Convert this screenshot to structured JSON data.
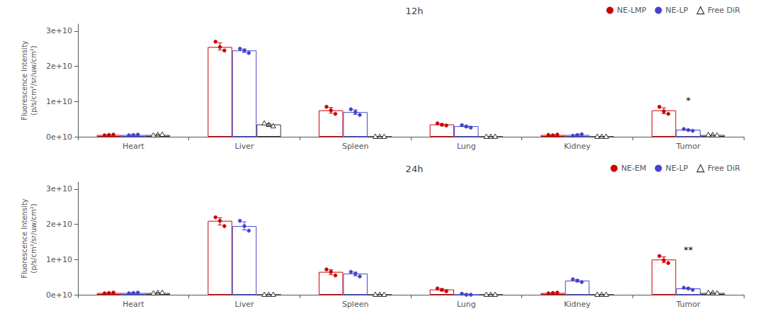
{
  "chart_data": [
    {
      "type": "bar",
      "title": "12h",
      "categories": [
        "Heart",
        "Liver",
        "Spleen",
        "Lung",
        "Kidney",
        "Tumor"
      ],
      "ylabel": "Fluorescence Intensity\n(p/s/cm²/sr/uw/cm²)",
      "ylim": [
        0,
        32000000000.0
      ],
      "yticks": [
        {
          "value": 0,
          "label": "0e+10"
        },
        {
          "value": 10000000000.0,
          "label": "1e+10"
        },
        {
          "value": 20000000000.0,
          "label": "2e+10"
        },
        {
          "value": 30000000000.0,
          "label": "3e+10"
        }
      ],
      "grid": false,
      "legend": "upper right",
      "series": [
        {
          "name": "NE-LMP",
          "color": "#cc0000",
          "marker": "circle",
          "values": [
            500000000.0,
            25500000000.0,
            7500000000.0,
            3500000000.0,
            500000000.0,
            7500000000.0
          ],
          "points": [
            [
              400000000.0,
              500000000.0,
              600000000.0
            ],
            [
              27000000000.0,
              25500000000.0,
              24500000000.0
            ],
            [
              8500000000.0,
              7500000000.0,
              6500000000.0
            ],
            [
              3800000000.0,
              3400000000.0,
              3200000000.0
            ],
            [
              500000000.0,
              400000000.0,
              600000000.0
            ],
            [
              8500000000.0,
              7200000000.0,
              6500000000.0
            ]
          ],
          "error_centers": [
            500000000.0,
            25666667000.0,
            7500000000.0,
            3466667000.0,
            500000000.0,
            7400000000.0
          ],
          "errors": [
            81650000.0,
            1027402000.0,
            816497000.0,
            249444000.0,
            81650000.0,
            828654000.0
          ]
        },
        {
          "name": "NE-LP",
          "color": "#4444cc",
          "marker": "circle",
          "values": [
            500000000.0,
            24500000000.0,
            7000000000.0,
            3000000000.0,
            500000000.0,
            2000000000.0
          ],
          "points": [
            [
              400000000.0,
              500000000.0,
              600000000.0
            ],
            [
              25000000000.0,
              24500000000.0,
              23800000000.0
            ],
            [
              7800000000.0,
              7000000000.0,
              6200000000.0
            ],
            [
              3300000000.0,
              2900000000.0,
              2600000000.0
            ],
            [
              300000000.0,
              500000000.0,
              700000000.0
            ],
            [
              2200000000.0,
              1900000000.0,
              1700000000.0
            ]
          ],
          "error_centers": [
            500000000.0,
            24433333000.0,
            7000000000.0,
            2933333000.0,
            500000000.0,
            1933333000.0
          ],
          "errors": [
            81650000.0,
            492161000.0,
            653197000.0,
            286744000.0,
            163299000.0,
            205480000.0
          ]
        },
        {
          "name": "Free DiR",
          "color": "#333333",
          "marker": "triangle",
          "values": [
            500000000.0,
            3500000000.0,
            0.0,
            0.0,
            0.0,
            500000000.0
          ],
          "points": [
            [
              400000000.0,
              500000000.0,
              600000000.0
            ],
            [
              3800000000.0,
              3400000000.0,
              3000000000.0
            ],
            [
              0.0,
              0.0,
              0.0
            ],
            [
              0.0,
              0.0,
              0.0
            ],
            [
              0.0,
              0.0,
              0.0
            ],
            [
              500000000.0,
              500000000.0,
              400000000.0
            ]
          ],
          "error_centers": [
            500000000.0,
            3400000000.0,
            0,
            0,
            0,
            466667000.0
          ],
          "errors": [
            81650000.0,
            326599000.0,
            0,
            0,
            0,
            47140000.0
          ]
        }
      ],
      "annotations": [
        {
          "text": "*",
          "x": "Tumor",
          "y": 9000000000.0
        }
      ]
    },
    {
      "type": "bar",
      "title": "24h",
      "categories": [
        "Heart",
        "Liver",
        "Spleen",
        "Lung",
        "Kidney",
        "Tumor"
      ],
      "ylabel": "Fluorescence Intensity\n(p/s/cm²/sr/uw/cm²)",
      "ylim": [
        0,
        32000000000.0
      ],
      "yticks": [
        {
          "value": 0,
          "label": "0e+10"
        },
        {
          "value": 10000000000.0,
          "label": "1e+10"
        },
        {
          "value": 20000000000.0,
          "label": "2e+10"
        },
        {
          "value": 30000000000.0,
          "label": "3e+10"
        }
      ],
      "grid": false,
      "legend": "upper right",
      "series": [
        {
          "name": "NE-EM",
          "color": "#cc0000",
          "marker": "circle",
          "values": [
            500000000.0,
            21000000000.0,
            6500000000.0,
            1500000000.0,
            500000000.0,
            10000000000.0
          ],
          "points": [
            [
              400000000.0,
              500000000.0,
              600000000.0
            ],
            [
              22000000000.0,
              21000000000.0,
              19500000000.0
            ],
            [
              7200000000.0,
              6500000000.0,
              5500000000.0
            ],
            [
              1800000000.0,
              1400000000.0,
              1000000000.0
            ],
            [
              400000000.0,
              500000000.0,
              600000000.0
            ],
            [
              11000000000.0,
              9800000000.0,
              9000000000.0
            ]
          ],
          "error_centers": [
            500000000.0,
            20833333000.0,
            6400000000.0,
            1400000000.0,
            500000000.0,
            9933333000.0
          ],
          "errors": [
            81650000.0,
            1027402000.0,
            697615000.0,
            326599000.0,
            81650000.0,
            821922000.0
          ]
        },
        {
          "name": "NE-LP",
          "color": "#4444cc",
          "marker": "circle",
          "values": [
            500000000.0,
            19500000000.0,
            6000000000.0,
            0.0,
            4000000000.0,
            1800000000.0
          ],
          "points": [
            [
              400000000.0,
              500000000.0,
              600000000.0
            ],
            [
              21000000000.0,
              19500000000.0,
              18200000000.0
            ],
            [
              6500000000.0,
              6000000000.0,
              5200000000.0
            ],
            [
              300000000.0,
              0.0,
              0.0
            ],
            [
              4400000000.0,
              4000000000.0,
              3600000000.0
            ],
            [
              2000000000.0,
              1800000000.0,
              1400000000.0
            ]
          ],
          "error_centers": [
            500000000.0,
            19566667000.0,
            5900000000.0,
            100000000.0,
            4000000000.0,
            1733333000.0
          ],
          "errors": [
            81650000.0,
            1144068000.0,
            535413000.0,
            141421000.0,
            326599000.0,
            249444000.0
          ]
        },
        {
          "name": "Free DiR",
          "color": "#333333",
          "marker": "triangle",
          "values": [
            500000000.0,
            0.0,
            0.0,
            0.0,
            0.0,
            500000000.0
          ],
          "points": [
            [
              400000000.0,
              500000000.0,
              600000000.0
            ],
            [
              0.0,
              0.0,
              0.0
            ],
            [
              0.0,
              0.0,
              0.0
            ],
            [
              0.0,
              0.0,
              0.0
            ],
            [
              0.0,
              0.0,
              0.0
            ],
            [
              500000000.0,
              500000000.0,
              400000000.0
            ]
          ],
          "error_centers": [
            500000000.0,
            0,
            0,
            0,
            0,
            466667000.0
          ],
          "errors": [
            81650000.0,
            0,
            0,
            0,
            0,
            47140000.0
          ]
        }
      ],
      "annotations": [
        {
          "text": "**",
          "x": "Tumor",
          "y": 11500000000.0
        }
      ]
    }
  ]
}
